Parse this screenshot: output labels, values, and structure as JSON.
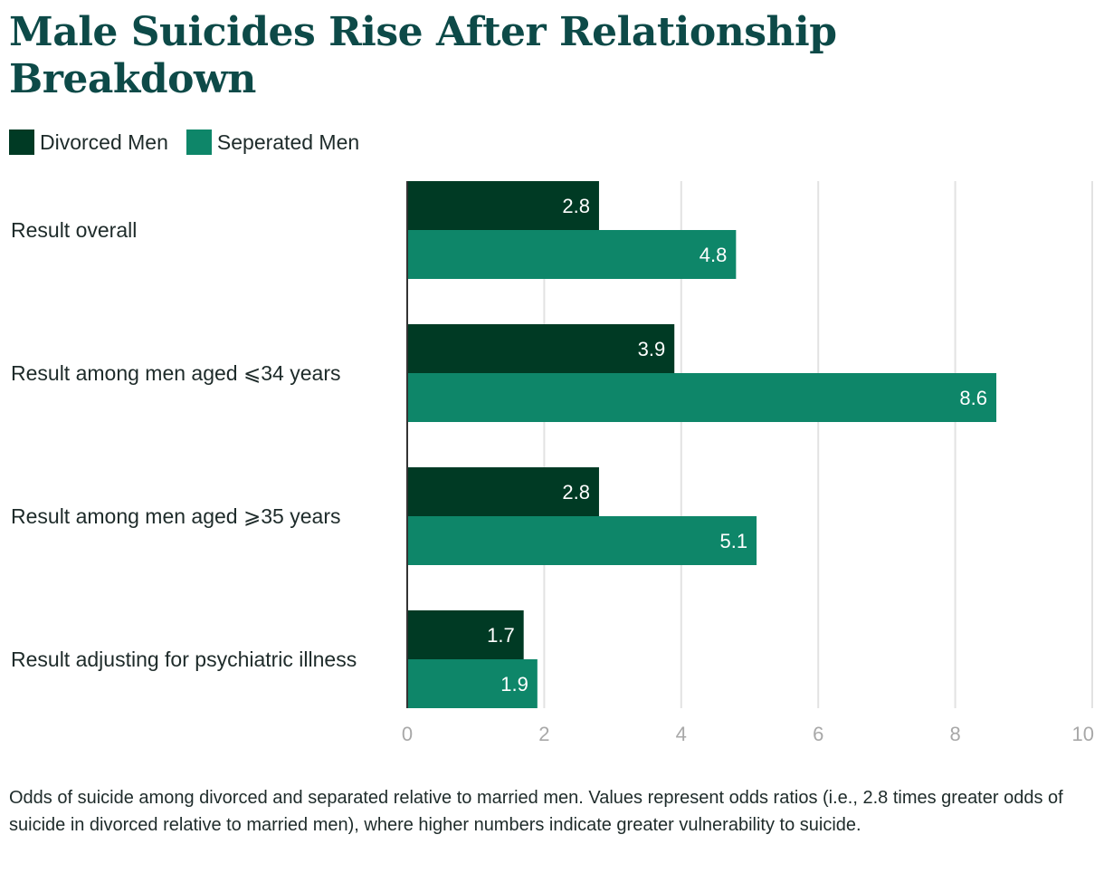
{
  "title": "Male Suicides Rise After Relationship Breakdown",
  "legend": [
    {
      "label": "Divorced Men",
      "color": "#003a24"
    },
    {
      "label": "Seperated Men",
      "color": "#0e8669"
    }
  ],
  "caption": "Odds of suicide among divorced and separated relative to married men. Values represent odds ratios (i.e., 2.8 times greater odds of suicide in divorced relative to married men), where higher numbers indicate greater vulnerability to suicide.",
  "colors": {
    "title": "#0d4a48",
    "grid": "#e2e2e2",
    "axis": "#333333"
  },
  "chart_data": {
    "type": "bar",
    "orientation": "horizontal",
    "categories": [
      "Result overall",
      "Result among men aged ⩽34 years",
      "Result among men aged ⩾35 years",
      "Result adjusting for psychiatric illness"
    ],
    "series": [
      {
        "name": "Divorced Men",
        "values": [
          2.8,
          3.9,
          2.8,
          1.7
        ],
        "color": "#003a24"
      },
      {
        "name": "Seperated Men",
        "values": [
          4.8,
          8.6,
          5.1,
          1.9
        ],
        "color": "#0e8669"
      }
    ],
    "xlim": [
      0,
      10
    ],
    "xticks": [
      0,
      2,
      4,
      6,
      8,
      10
    ],
    "grid": true,
    "legend_position": "top-left"
  }
}
